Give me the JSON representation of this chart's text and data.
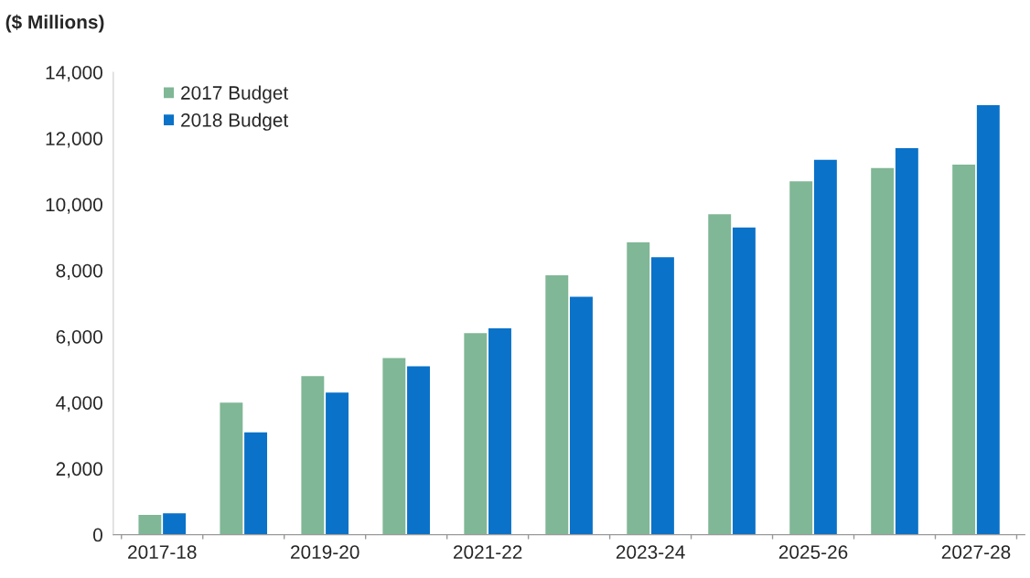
{
  "chart_data": {
    "type": "bar",
    "ylabel": "($ Millions)",
    "categories": [
      "2017-18",
      null,
      "2019-20",
      null,
      "2021-22",
      null,
      "2023-24",
      null,
      "2025-26",
      null,
      "2027-28"
    ],
    "series": [
      {
        "name": "2017 Budget",
        "color": "#80b796",
        "values": [
          600,
          4000,
          4800,
          5350,
          6100,
          7850,
          8850,
          9700,
          10700,
          11100,
          11200
        ]
      },
      {
        "name": "2018 Budget",
        "color": "#0a72c8",
        "values": [
          650,
          3100,
          4300,
          5100,
          6250,
          7200,
          8400,
          9300,
          11350,
          11700,
          13000
        ]
      }
    ],
    "ylim": [
      0,
      14000
    ],
    "yticks": [
      {
        "value": 0,
        "label": "0"
      },
      {
        "value": 2000,
        "label": "2,000"
      },
      {
        "value": 4000,
        "label": "4,000"
      },
      {
        "value": 6000,
        "label": "6,000"
      },
      {
        "value": 8000,
        "label": "8,000"
      },
      {
        "value": 10000,
        "label": "10,000"
      },
      {
        "value": 12000,
        "label": "12,000"
      },
      {
        "value": 14000,
        "label": "14,000"
      }
    ],
    "grid": false,
    "legend": "top left"
  }
}
